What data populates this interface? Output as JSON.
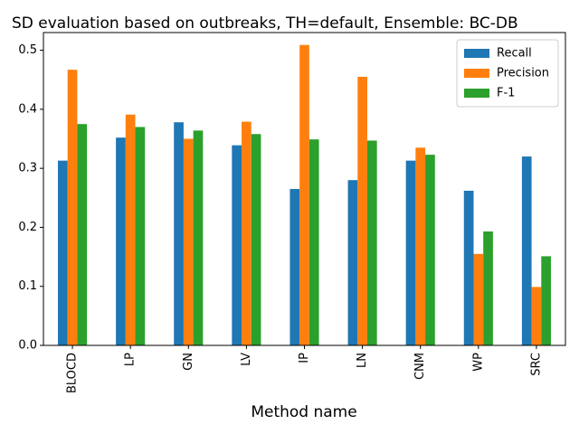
{
  "chart_data": {
    "type": "bar",
    "title": "SD evaluation based on outbreaks, TH=default, Ensemble: BC-DB",
    "xlabel": "Method name",
    "ylabel": "",
    "ylim": [
      0,
      0.53
    ],
    "yticks": [
      "0.0",
      "0.1",
      "0.2",
      "0.3",
      "0.4",
      "0.5"
    ],
    "ytick_values": [
      0,
      0.1,
      0.2,
      0.3,
      0.4,
      0.5
    ],
    "grid": false,
    "legend_position": "top-right",
    "categories": [
      "BLOCD",
      "LP",
      "GN",
      "LV",
      "IP",
      "LN",
      "CNM",
      "WP",
      "SRC"
    ],
    "series": [
      {
        "name": "Recall",
        "color": "#1f77b4",
        "values": [
          0.313,
          0.352,
          0.378,
          0.339,
          0.265,
          0.28,
          0.313,
          0.262,
          0.32
        ]
      },
      {
        "name": "Precision",
        "color": "#ff7f0e",
        "values": [
          0.467,
          0.391,
          0.35,
          0.379,
          0.509,
          0.455,
          0.335,
          0.155,
          0.099
        ]
      },
      {
        "name": "F-1",
        "color": "#2ca02c",
        "values": [
          0.375,
          0.37,
          0.364,
          0.358,
          0.349,
          0.347,
          0.323,
          0.193,
          0.151
        ]
      }
    ]
  }
}
